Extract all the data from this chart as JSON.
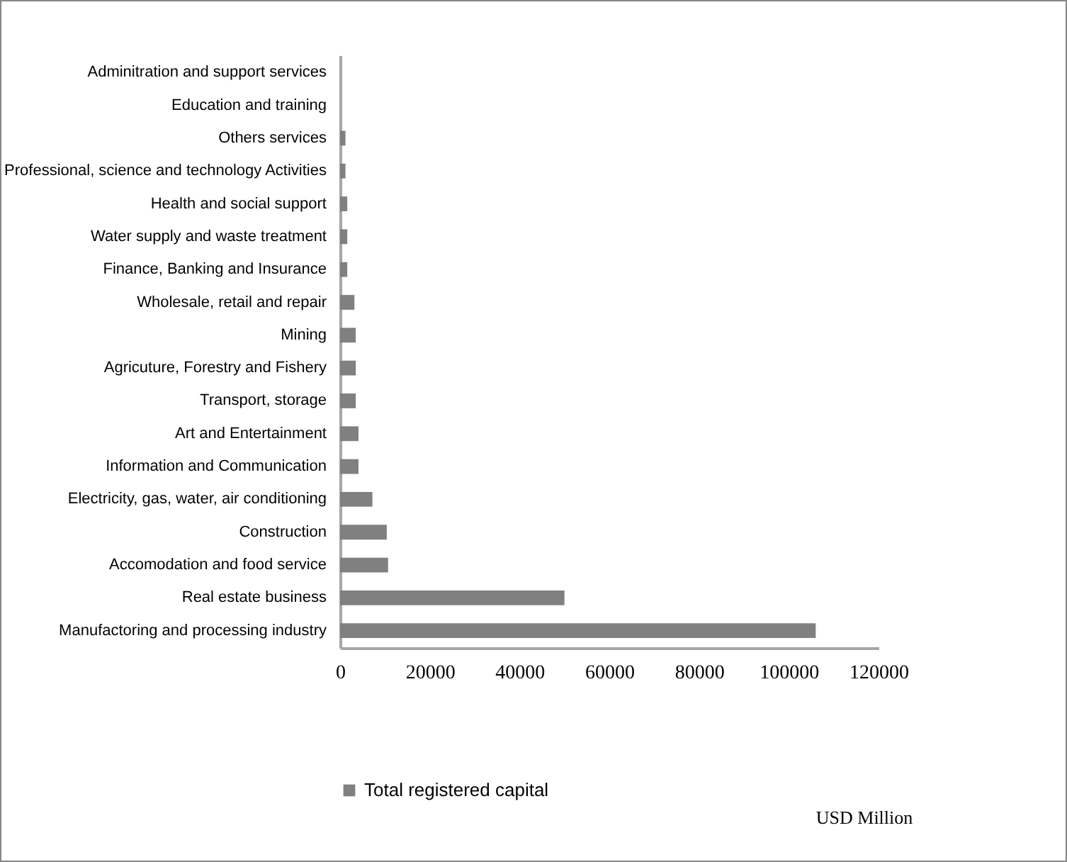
{
  "chart_data": {
    "type": "bar",
    "orientation": "horizontal",
    "categories": [
      "Adminitration and support services",
      "Education and training",
      "Others services",
      "Professional, science and technology Activities",
      "Health and social support",
      "Water supply and waste treatment",
      "Finance, Banking and Insurance",
      "Wholesale, retail and repair",
      "Mining",
      "Agricuture, Forestry and Fishery",
      "Transport, storage",
      "Art and Entertainment",
      "Information and Communication",
      "Electricity, gas, water, air conditioning",
      "Construction",
      "Accomodation and food service",
      "Real estate business",
      "Manufactoring and processing industry"
    ],
    "series": [
      {
        "name": "Total registered capital",
        "color": "#808080",
        "values": [
          0,
          0,
          1200,
          1200,
          1600,
          1600,
          1600,
          3200,
          3500,
          3500,
          3500,
          4100,
          4100,
          7200,
          10400,
          10700,
          50000,
          106000
        ]
      }
    ],
    "xlim": [
      0,
      120000
    ],
    "xticks": [
      0,
      20000,
      40000,
      60000,
      80000,
      100000,
      120000
    ],
    "grid": false,
    "legend": "bottom",
    "annotations": [
      "USD Million"
    ]
  }
}
